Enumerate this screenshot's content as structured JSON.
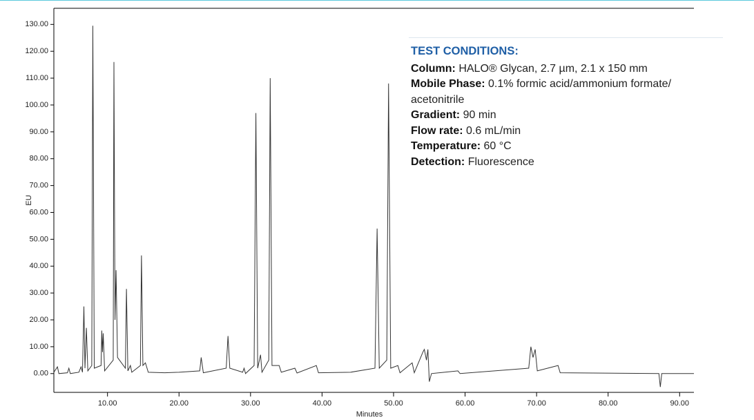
{
  "chart_data": {
    "type": "line",
    "x_label": "Minutes",
    "y_label": "EU",
    "xlim": [
      2.5,
      92
    ],
    "ylim": [
      -7,
      136
    ],
    "xticks": [
      {
        "value": 10,
        "label": "10.00"
      },
      {
        "value": 20,
        "label": "20.00"
      },
      {
        "value": 30,
        "label": "30.00"
      },
      {
        "value": 40,
        "label": "40.00"
      },
      {
        "value": 50,
        "label": "50.00"
      },
      {
        "value": 60,
        "label": "60.00"
      },
      {
        "value": 70,
        "label": "70.00"
      },
      {
        "value": 80,
        "label": "80.00"
      },
      {
        "value": 90,
        "label": "90.00"
      }
    ],
    "yticks": [
      {
        "value": 0,
        "label": "0.00"
      },
      {
        "value": 10,
        "label": "10.00"
      },
      {
        "value": 20,
        "label": "20.00"
      },
      {
        "value": 30,
        "label": "30.00"
      },
      {
        "value": 40,
        "label": "40.00"
      },
      {
        "value": 50,
        "label": "50.00"
      },
      {
        "value": 60,
        "label": "60.00"
      },
      {
        "value": 70,
        "label": "70.00"
      },
      {
        "value": 80,
        "label": "80.00"
      },
      {
        "value": 90,
        "label": "90.00"
      },
      {
        "value": 100,
        "label": "100.00"
      },
      {
        "value": 110,
        "label": "110.00"
      },
      {
        "value": 120,
        "label": "120.00"
      },
      {
        "value": 130,
        "label": "130.00"
      }
    ],
    "grid": false,
    "x": [
      2.5,
      3.0,
      3.2,
      4.4,
      4.6,
      4.8,
      6.0,
      6.3,
      6.5,
      6.7,
      6.85,
      7.05,
      7.25,
      7.8,
      7.95,
      8.15,
      9.1,
      9.2,
      9.3,
      9.4,
      9.6,
      10.8,
      10.9,
      11.05,
      11.2,
      11.4,
      12.5,
      12.65,
      12.85,
      13.2,
      13.4,
      14.6,
      14.75,
      14.95,
      15.3,
      15.7,
      18,
      20,
      22.9,
      23.1,
      23.4,
      26.6,
      26.85,
      27.1,
      28.9,
      29.1,
      29.3,
      30.5,
      30.75,
      31.0,
      31.4,
      31.6,
      32.55,
      32.75,
      33.0,
      34,
      34.3,
      36.2,
      36.5,
      39.2,
      39.5,
      44,
      47.4,
      47.7,
      48.0,
      49.05,
      49.3,
      49.6,
      50.6,
      50.9,
      52.6,
      52.9,
      54.1,
      54.3,
      54.6,
      54.8,
      55.0,
      55.3,
      59,
      59.3,
      68.9,
      69.2,
      69.5,
      69.8,
      70.1,
      73,
      73.3,
      87.1,
      87.3,
      87.5,
      92
    ],
    "series": [
      {
        "color": "#333333",
        "values": [
          0.5,
          2.5,
          0,
          0.3,
          2,
          0,
          0.5,
          2.5,
          0.5,
          25,
          2,
          17,
          1,
          3,
          129.5,
          2,
          3,
          16,
          8,
          15,
          1,
          5,
          116,
          20,
          38.5,
          6,
          2,
          31.5,
          1,
          3,
          0.5,
          3,
          44,
          3,
          4,
          0.5,
          0.3,
          0.5,
          1,
          6,
          0.3,
          2,
          14,
          2,
          0.5,
          2,
          0,
          3,
          97,
          2,
          7,
          0.5,
          5,
          110,
          3,
          3,
          0.5,
          2,
          0.2,
          3,
          0.3,
          0.5,
          2,
          54,
          2,
          5,
          108,
          2,
          3,
          0.3,
          4,
          0.3,
          8,
          9,
          5,
          9,
          -3,
          0,
          1,
          0,
          2,
          10,
          6,
          9,
          1,
          3,
          0.3,
          0,
          -5,
          0,
          0
        ]
      }
    ]
  },
  "test_conditions": {
    "title": "TEST CONDITIONS:",
    "items": [
      {
        "label": "Column:",
        "text": "HALO® Glycan, 2.7 µm, 2.1 x 150 mm"
      },
      {
        "label": "Mobile Phase:",
        "text": "0.1% formic acid/ammonium formate/ acetonitrile"
      },
      {
        "label": "Gradient:",
        "text": "90 min"
      },
      {
        "label": "Flow rate:",
        "text": "0.6 mL/min"
      },
      {
        "label": "Temperature:",
        "text": "60 °C"
      },
      {
        "label": "Detection:",
        "text": "Fluorescence"
      }
    ]
  }
}
